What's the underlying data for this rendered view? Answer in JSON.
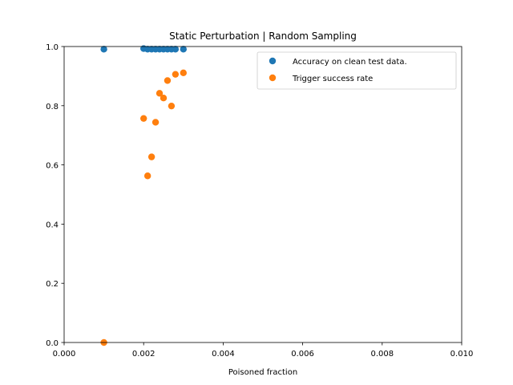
{
  "chart_data": {
    "type": "scatter",
    "title": "Static Perturbation | Random Sampling",
    "xlabel": "Poisoned fraction",
    "ylabel": "",
    "xlim": [
      0.0,
      0.01
    ],
    "ylim": [
      0.0,
      1.0
    ],
    "xticks": [
      "0.000",
      "0.002",
      "0.004",
      "0.006",
      "0.008",
      "0.010"
    ],
    "yticks": [
      "0.0",
      "0.2",
      "0.4",
      "0.6",
      "0.8",
      "1.0"
    ],
    "grid": false,
    "legend_position": "top-right",
    "series": [
      {
        "name": "Accuracy on clean test data.",
        "color": "#1f77b4",
        "points": [
          [
            0.001,
            0.991
          ],
          [
            0.002,
            0.993
          ],
          [
            0.0021,
            0.991
          ],
          [
            0.0022,
            0.991
          ],
          [
            0.0023,
            0.991
          ],
          [
            0.0024,
            0.991
          ],
          [
            0.0025,
            0.991
          ],
          [
            0.0026,
            0.991
          ],
          [
            0.0027,
            0.991
          ],
          [
            0.0028,
            0.991
          ],
          [
            0.003,
            0.991
          ]
        ]
      },
      {
        "name": "Trigger success rate",
        "color": "#ff7f0e",
        "points": [
          [
            0.001,
            0.0
          ],
          [
            0.002,
            0.757
          ],
          [
            0.0021,
            0.563
          ],
          [
            0.0022,
            0.627
          ],
          [
            0.0023,
            0.744
          ],
          [
            0.0024,
            0.842
          ],
          [
            0.0025,
            0.826
          ],
          [
            0.0026,
            0.885
          ],
          [
            0.0027,
            0.799
          ],
          [
            0.0028,
            0.906
          ],
          [
            0.003,
            0.911
          ]
        ]
      }
    ]
  }
}
